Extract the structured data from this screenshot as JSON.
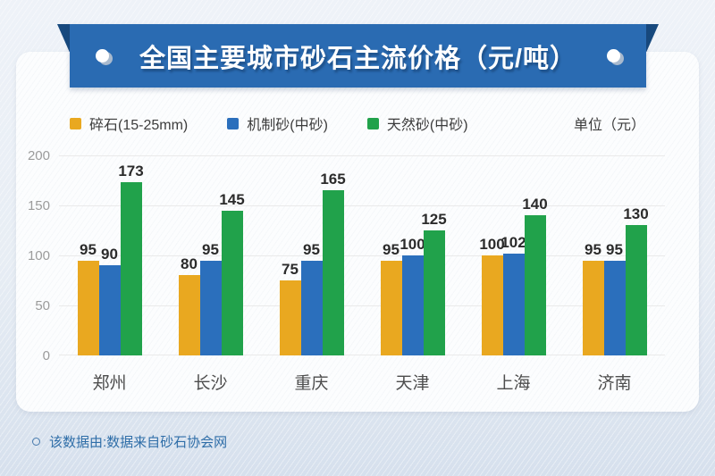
{
  "header": {
    "title": "全国主要城市砂石主流价格（元/吨）",
    "banner_color": "#2A6BB2",
    "fold_color": "#17497E"
  },
  "legend": {
    "items": [
      {
        "label": "碎石(15-25mm)",
        "color": "#E9A820"
      },
      {
        "label": "机制砂(中砂)",
        "color": "#2B6FBC"
      },
      {
        "label": "天然砂(中砂)",
        "color": "#21A24B"
      }
    ],
    "unit_label": "单位（元）"
  },
  "chart_data": {
    "type": "bar",
    "title": "全国主要城市砂石主流价格（元/吨）",
    "categories": [
      "郑州",
      "长沙",
      "重庆",
      "天津",
      "上海",
      "济南"
    ],
    "series": [
      {
        "name": "碎石(15-25mm)",
        "color": "#E9A820",
        "values": [
          95,
          80,
          75,
          95,
          100,
          95
        ]
      },
      {
        "name": "机制砂(中砂)",
        "color": "#2B6FBC",
        "values": [
          90,
          95,
          95,
          100,
          102,
          95
        ]
      },
      {
        "name": "天然砂(中砂)",
        "color": "#21A24B",
        "values": [
          173,
          145,
          165,
          125,
          140,
          130
        ]
      }
    ],
    "xlabel": "",
    "ylabel": "单位（元）",
    "yticks": [
      0,
      50,
      100,
      150,
      200
    ],
    "ylim": [
      0,
      200
    ],
    "grid": true,
    "legend_position": "top",
    "data_labels": true
  },
  "footer": {
    "source_text": "该数据由:数据来自砂石协会网"
  }
}
